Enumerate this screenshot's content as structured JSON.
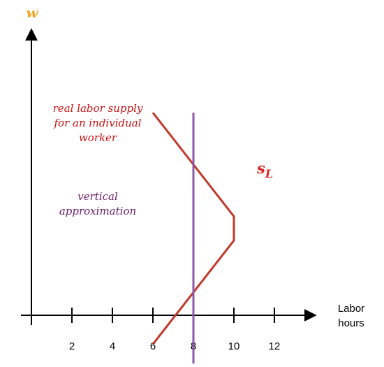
{
  "chart_data": {
    "type": "line",
    "title": "",
    "ylabel": "w",
    "xlabel_line1": "Labor",
    "xlabel_line2": "hours",
    "x_ticks": [
      2,
      4,
      6,
      8,
      10,
      12
    ],
    "xlim": [
      0,
      14
    ],
    "ylim": [
      0,
      10
    ],
    "series": [
      {
        "name": "s",
        "name_sub": "L",
        "color": "#c0392b",
        "points": [
          [
            6,
            8.4
          ],
          [
            10,
            4.1
          ],
          [
            10,
            3.1
          ],
          [
            6,
            -1.2
          ]
        ]
      },
      {
        "color": "#8e5aa8",
        "points": [
          [
            8,
            8.4
          ],
          [
            8,
            -2.0
          ]
        ]
      }
    ],
    "annotations": {
      "real_supply": [
        "real labor supply",
        "for an individual",
        "worker"
      ],
      "vertical": [
        "vertical",
        "approximation"
      ]
    },
    "colors": {
      "axis": "#000000",
      "ylabel": "#f5a623",
      "supply_text": "#cc1111",
      "vertical_text": "#6a1b6a",
      "sl_label": "#dd2222"
    }
  }
}
